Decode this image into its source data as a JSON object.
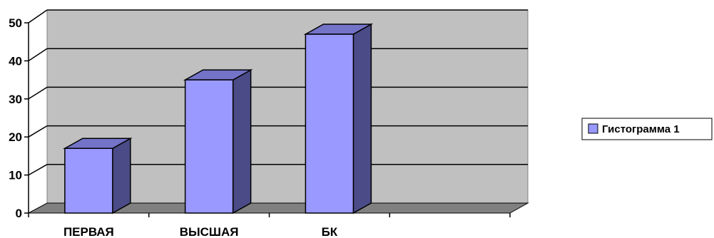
{
  "chart_data": {
    "type": "bar",
    "categories": [
      "ПЕРВАЯ",
      "ВЫСШАЯ",
      "БК",
      ""
    ],
    "series": [
      {
        "name": "Гистограмма 1",
        "values": [
          17,
          35,
          47,
          null
        ],
        "color": "#9999ff",
        "side_color": "#4b4b87",
        "top_color": "#7373c8"
      }
    ],
    "ylim": [
      0,
      50
    ],
    "yticks": [
      "0",
      "10",
      "20",
      "30",
      "40",
      "50"
    ],
    "grid": true,
    "three_d": true,
    "legend_position": "right",
    "wall_color": "#c0c0c0",
    "floor_color": "#808080"
  }
}
